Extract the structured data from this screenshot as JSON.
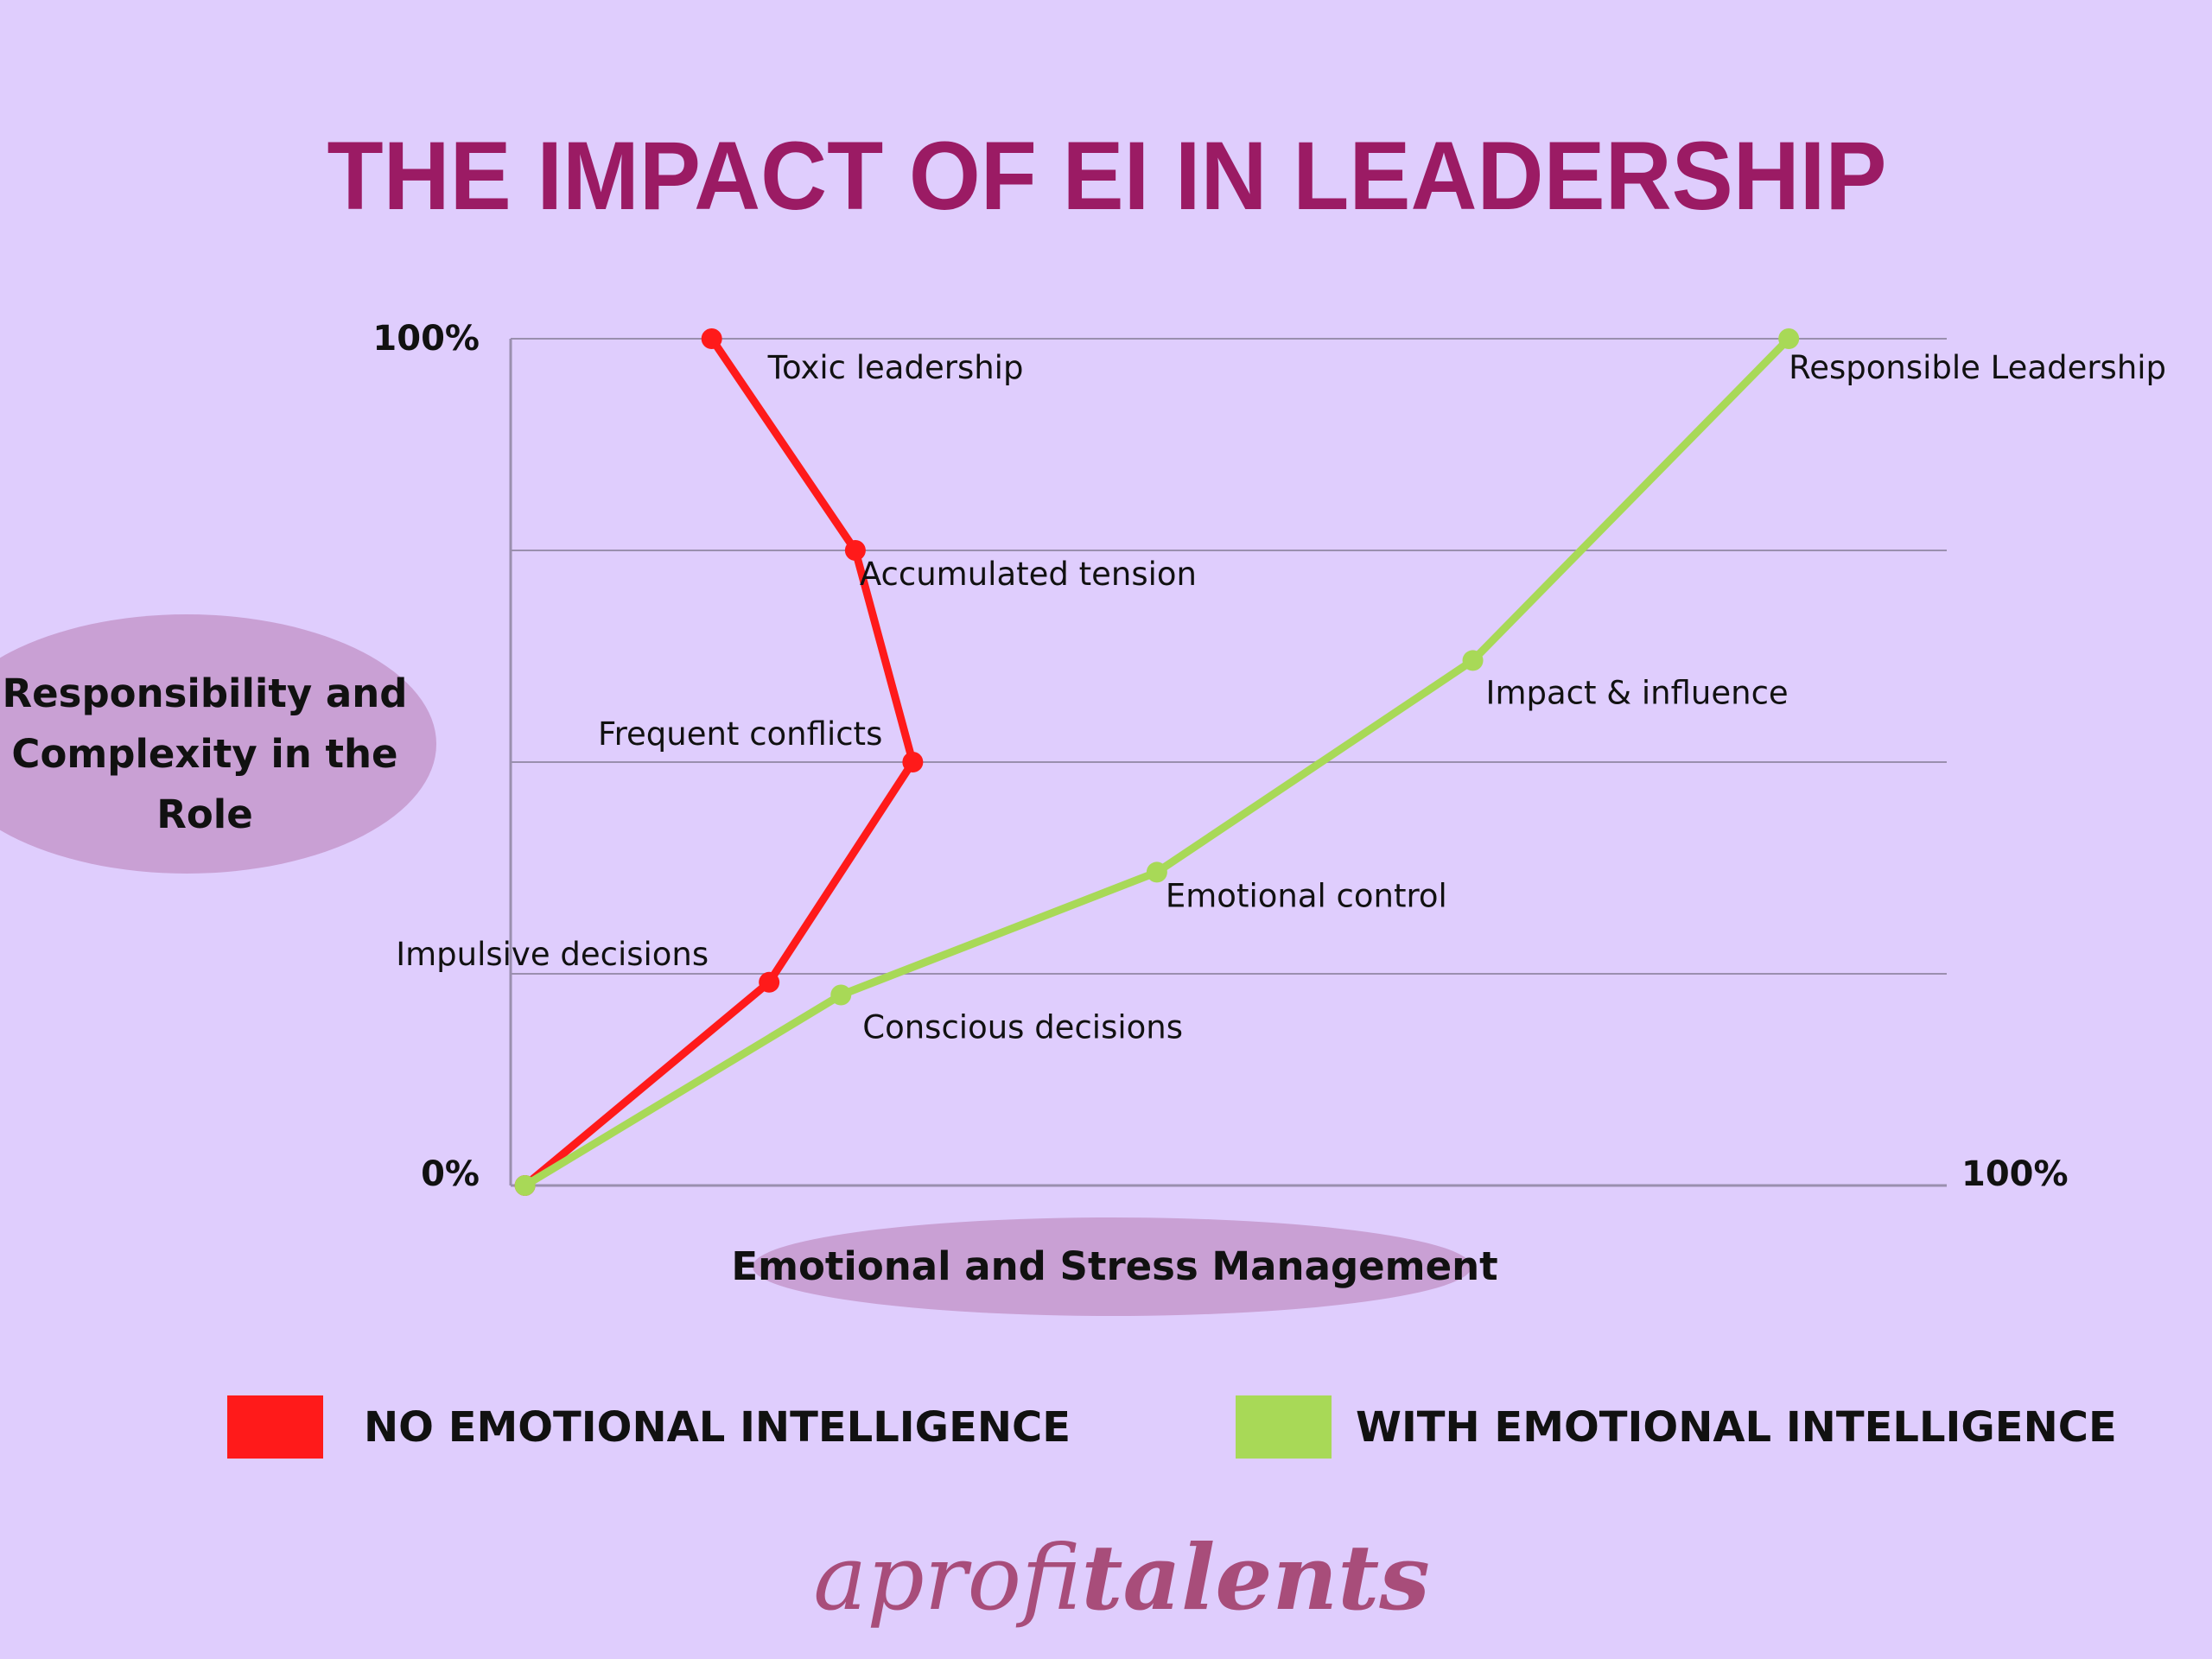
{
  "colors": {
    "background": "#dfcdfd",
    "title": "#9b1b64",
    "no_ei": "#ff1a1a",
    "with_ei": "#a8d957",
    "ellipse": "#c9a0d4",
    "grid": "#9a8fae",
    "logo": "#a84d7a"
  },
  "chart_data": {
    "type": "line",
    "title": "THE IMPACT OF EI IN LEADERSHIP",
    "xlabel": "Emotional and Stress Management",
    "ylabel": "Responsibility and Complexity in the Role",
    "ylabel_lines": [
      "Responsibility and",
      "Complexity in the",
      "Role"
    ],
    "xlim": [
      0,
      100
    ],
    "ylim": [
      0,
      100
    ],
    "x_tick_labels": {
      "max": "100%"
    },
    "y_tick_labels": {
      "min": "0%",
      "max": "100%"
    },
    "grid": "horizontal",
    "legend_position": "bottom",
    "series": [
      {
        "name": "NO EMOTIONAL INTELLIGENCE",
        "color": "#ff1a1a",
        "points": [
          {
            "x": 1,
            "y": 0,
            "label": ""
          },
          {
            "x": 18,
            "y": 24,
            "label": "Impulsive decisions"
          },
          {
            "x": 28,
            "y": 50,
            "label": "Frequent conflicts"
          },
          {
            "x": 24,
            "y": 75,
            "label": "Accumulated tension"
          },
          {
            "x": 14,
            "y": 100,
            "label": "Toxic leadership"
          }
        ]
      },
      {
        "name": "WITH EMOTIONAL INTELLIGENCE",
        "color": "#a8d957",
        "points": [
          {
            "x": 1,
            "y": 0,
            "label": ""
          },
          {
            "x": 23,
            "y": 22.5,
            "label": "Conscious decisions"
          },
          {
            "x": 45,
            "y": 37,
            "label": "Emotional control"
          },
          {
            "x": 67,
            "y": 62,
            "label": "Impact & influence"
          },
          {
            "x": 89,
            "y": 100,
            "label": "Responsible Leadership"
          }
        ]
      }
    ]
  },
  "logo": {
    "light": "aprofi",
    "bold": "talents"
  }
}
